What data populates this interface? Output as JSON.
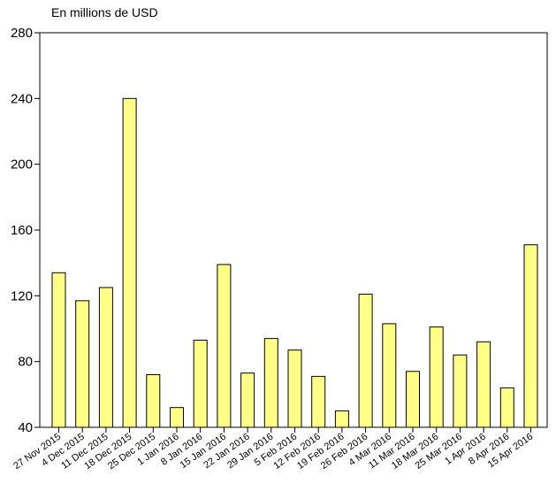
{
  "chart_data": {
    "type": "bar",
    "unit_label": "En millions de USD",
    "title": "",
    "xlabel": "",
    "ylabel": "",
    "ylim": [
      40,
      280
    ],
    "yticks": [
      40,
      80,
      120,
      160,
      200,
      240,
      280
    ],
    "grid": false,
    "bar_color": "#ffff88",
    "bar_stroke": "#000000",
    "categories": [
      "27 Nov 2015",
      "4 Dec 2015",
      "11 Dec 2015",
      "18 Dec 2015",
      "25 Dec 2015",
      "1 Jan 2016",
      "8 Jan 2016",
      "15 Jan 2016",
      "22 Jan 2016",
      "29 Jan 2016",
      "5 Feb 2016",
      "12 Feb 2016",
      "19 Feb 2016",
      "26 Feb 2016",
      "4 Mar 2016",
      "11 Mar 2016",
      "18 Mar 2016",
      "25 Mar 2016",
      "1 Apr 2016",
      "8 Apr 2016",
      "15 Apr 2016"
    ],
    "values": [
      134,
      117,
      125,
      240,
      72,
      52,
      93,
      139,
      73,
      94,
      87,
      71,
      50,
      121,
      103,
      74,
      101,
      84,
      92,
      64,
      151
    ]
  }
}
